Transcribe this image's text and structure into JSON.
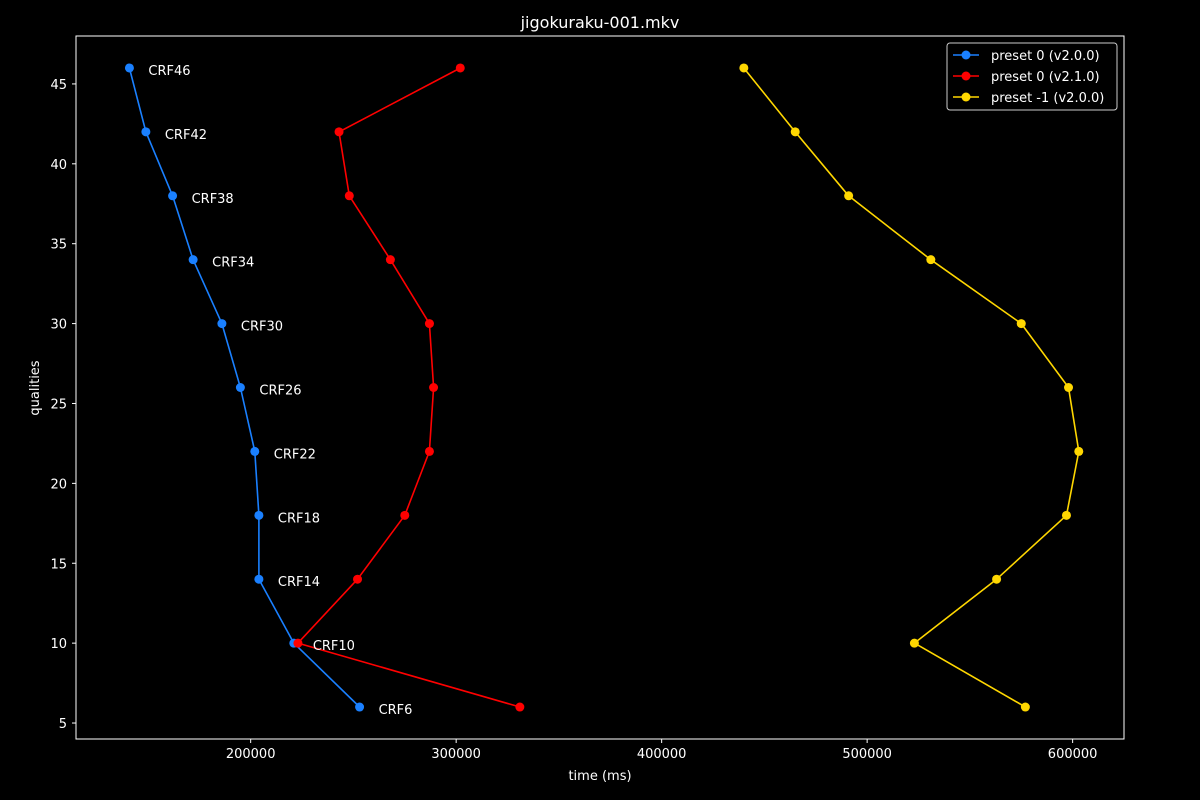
{
  "chart_data": {
    "type": "line",
    "title": "jigokuraku-001.mkv",
    "xlabel": "time (ms)",
    "ylabel": "qualities",
    "xlim": [
      115000,
      625000
    ],
    "ylim": [
      4,
      48
    ],
    "xticks": [
      200000,
      300000,
      400000,
      500000,
      600000
    ],
    "yticks": [
      5,
      10,
      15,
      20,
      25,
      30,
      35,
      40,
      45
    ],
    "grid": false,
    "legend_position": "top-right",
    "point_labels": [
      "CRF46",
      "CRF42",
      "CRF38",
      "CRF34",
      "CRF30",
      "CRF26",
      "CRF22",
      "CRF18",
      "CRF14",
      "CRF10",
      "CRF6"
    ],
    "series": [
      {
        "name": "preset 0 (v2.0.0)",
        "color": "#1a80ff",
        "labeled": true,
        "points": [
          {
            "x": 141000,
            "y": 46
          },
          {
            "x": 149000,
            "y": 42
          },
          {
            "x": 162000,
            "y": 38
          },
          {
            "x": 172000,
            "y": 34
          },
          {
            "x": 186000,
            "y": 30
          },
          {
            "x": 195000,
            "y": 26
          },
          {
            "x": 202000,
            "y": 22
          },
          {
            "x": 204000,
            "y": 18
          },
          {
            "x": 204000,
            "y": 14
          },
          {
            "x": 221000,
            "y": 10
          },
          {
            "x": 253000,
            "y": 6
          }
        ]
      },
      {
        "name": "preset 0 (v2.1.0)",
        "color": "#ff0000",
        "labeled": false,
        "points": [
          {
            "x": 302000,
            "y": 46
          },
          {
            "x": 243000,
            "y": 42
          },
          {
            "x": 248000,
            "y": 38
          },
          {
            "x": 268000,
            "y": 34
          },
          {
            "x": 287000,
            "y": 30
          },
          {
            "x": 289000,
            "y": 26
          },
          {
            "x": 287000,
            "y": 22
          },
          {
            "x": 275000,
            "y": 18
          },
          {
            "x": 252000,
            "y": 14
          },
          {
            "x": 223000,
            "y": 10
          },
          {
            "x": 331000,
            "y": 6
          }
        ]
      },
      {
        "name": "preset -1 (v2.0.0)",
        "color": "#ffd700",
        "labeled": false,
        "points": [
          {
            "x": 440000,
            "y": 46
          },
          {
            "x": 465000,
            "y": 42
          },
          {
            "x": 491000,
            "y": 38
          },
          {
            "x": 531000,
            "y": 34
          },
          {
            "x": 575000,
            "y": 30
          },
          {
            "x": 598000,
            "y": 26
          },
          {
            "x": 603000,
            "y": 22
          },
          {
            "x": 597000,
            "y": 18
          },
          {
            "x": 563000,
            "y": 14
          },
          {
            "x": 523000,
            "y": 10
          },
          {
            "x": 577000,
            "y": 6
          }
        ]
      }
    ]
  }
}
